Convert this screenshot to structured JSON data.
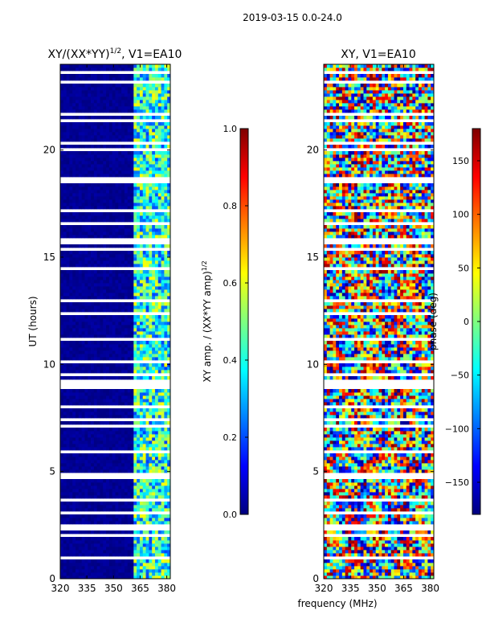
{
  "figure": {
    "suptitle": "2019-03-15 0.0-24.0",
    "shared_xlabel": "frequency (MHz)"
  },
  "colors": {
    "masked": "#ffffff",
    "axis": "#000000",
    "jet": [
      "#00007f",
      "#0000ff",
      "#007fff",
      "#00ffff",
      "#7fff7f",
      "#ffff00",
      "#ff7f00",
      "#ff0000",
      "#7f0000"
    ]
  },
  "chart_data": [
    {
      "type": "heatmap",
      "title": "XY/(XX*YY)",
      "title_power": "1/2",
      "title_suffix": ", V1=EA10",
      "xlabel": "",
      "ylabel": "UT (hours)",
      "xlim": [
        320,
        382
      ],
      "ylim": [
        0,
        24
      ],
      "xticks": [
        320,
        335,
        350,
        365,
        380
      ],
      "yticks": [
        0,
        5,
        10,
        15,
        20
      ],
      "grid": false,
      "colorbar": {
        "label": "XY amp. / (XX*YY amp)",
        "label_power": "1/2",
        "range": [
          0.0,
          1.0
        ],
        "ticks": [
          "0.0",
          "0.2",
          "0.4",
          "0.6",
          "0.8",
          "1.0"
        ]
      },
      "value_range": [
        0.0,
        1.0
      ],
      "description_of_values": "mostly ~0 below 360 MHz, 0.2-0.7 between 360 and 382 MHz; many flagged (blank) time rows"
    },
    {
      "type": "heatmap",
      "title": "XY",
      "title_power": "",
      "title_suffix": ", V1=EA10",
      "xlabel": "frequency (MHz)",
      "ylabel": "",
      "xlim": [
        320,
        382
      ],
      "ylim": [
        0,
        24
      ],
      "xticks": [
        320,
        335,
        350,
        365,
        380
      ],
      "yticks": [
        0,
        5,
        10,
        15,
        20
      ],
      "grid": false,
      "colorbar": {
        "label": "phase (deg)",
        "label_power": "",
        "range": [
          -180,
          180
        ],
        "ticks": [
          "−150",
          "−100",
          "−50",
          "0",
          "50",
          "100",
          "150"
        ],
        "tick_values": [
          -150,
          -100,
          -50,
          0,
          50,
          100,
          150
        ]
      },
      "value_range": [
        -180,
        180
      ],
      "description_of_values": "noisy phase, full -180..180 deg range, banded structure"
    }
  ]
}
